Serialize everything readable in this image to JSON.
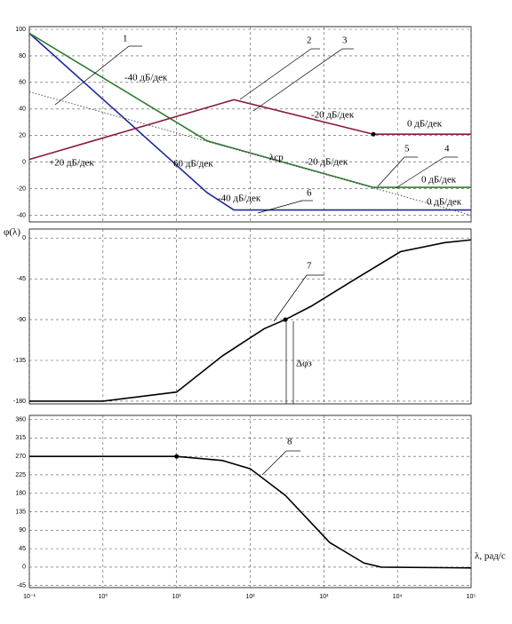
{
  "chart_data": [
    {
      "type": "line",
      "xscale": "log",
      "xlim": [
        0.1,
        100000
      ],
      "ylim": [
        -45,
        102
      ],
      "yticks": [
        100,
        80,
        60,
        40,
        20,
        0,
        -20,
        -40
      ],
      "grid": true,
      "series": [
        {
          "color": "#1f2a9a",
          "x": [
            0.1,
            26,
            60,
            100000
          ],
          "values": [
            97,
            -23,
            -36,
            -36
          ]
        },
        {
          "color": "#2e7d32",
          "x": [
            0.1,
            26,
            4700,
            100000
          ],
          "values": [
            97,
            16,
            -19,
            -19
          ]
        },
        {
          "color": "#8b1a3a",
          "x": [
            0.1,
            60,
            4700,
            100000
          ],
          "values": [
            2,
            47,
            21,
            21
          ]
        },
        {
          "color": "#555555",
          "dashed": true,
          "x": [
            0.1,
            100000
          ],
          "values": [
            53,
            -40
          ]
        }
      ],
      "points": [
        {
          "x": 4700,
          "y": 21
        }
      ],
      "annotations": [
        "1",
        "2",
        "3",
        "4",
        "5",
        "6",
        "-40 дБ/дек",
        "-20 дБ/дек",
        "0 дБ/дек",
        "+20 дБ/дек",
        "60 дБ/дек",
        "λср",
        "-20 дБ/дек",
        "0 дБ/дек",
        "-40 дБ/дек",
        "0 дБ/дек"
      ]
    },
    {
      "type": "line",
      "xscale": "log",
      "xlim": [
        0.1,
        100000
      ],
      "ylim": [
        -183,
        10
      ],
      "yticks": [
        0,
        -45,
        -90,
        -135,
        -180
      ],
      "grid": true,
      "ylabel": "φ(λ)",
      "series": [
        {
          "color": "#000000",
          "x": [
            0.1,
            1,
            10,
            42,
            155,
            300,
            680,
            2700,
            11000,
            44000,
            100000
          ],
          "values": [
            -180,
            -180,
            -170,
            -130,
            -100,
            -90,
            -75,
            -45,
            -15,
            -5,
            -2
          ]
        }
      ],
      "points": [
        {
          "x": 300,
          "y": -90
        }
      ],
      "annotations": [
        "7",
        "Δφз"
      ]
    },
    {
      "type": "line",
      "xscale": "log",
      "xlim": [
        0.1,
        100000
      ],
      "ylim": [
        -50,
        370
      ],
      "yticks": [
        360,
        315,
        270,
        225,
        180,
        135,
        90,
        45,
        0,
        -45
      ],
      "grid": true,
      "xlabel": "λ, рад/с",
      "xticks": [
        {
          "value": 0.1,
          "label": "10⁻¹"
        },
        {
          "value": 1,
          "label": "10⁰"
        },
        {
          "value": 10,
          "label": "10¹"
        },
        {
          "value": 100,
          "label": "10²"
        },
        {
          "value": 1000,
          "label": "10³"
        },
        {
          "value": 10000,
          "label": "10⁴"
        },
        {
          "value": 100000,
          "label": "10⁵"
        }
      ],
      "series": [
        {
          "color": "#000000",
          "x": [
            0.1,
            10,
            42,
            100,
            300,
            1200,
            3500,
            6000,
            100000
          ],
          "values": [
            270,
            270,
            260,
            240,
            175,
            60,
            10,
            0,
            -2
          ]
        }
      ],
      "points": [
        {
          "x": 10,
          "y": 270
        }
      ],
      "annotations": [
        "8"
      ]
    }
  ]
}
